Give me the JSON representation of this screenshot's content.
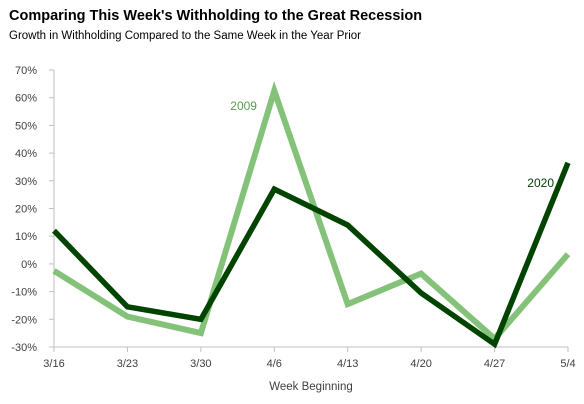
{
  "chart_data": {
    "type": "line",
    "title": "Comparing This Week's Withholding to the Great Recession",
    "subtitle": "Growth in Withholding Compared to the Same Week in the Year Prior",
    "xlabel": "Week Beginning",
    "ylabel": "",
    "categories": [
      "3/16",
      "3/23",
      "3/30",
      "4/6",
      "4/13",
      "4/20",
      "4/27",
      "5/4"
    ],
    "ylim": [
      -30,
      70
    ],
    "yticks": [
      -30,
      -20,
      -10,
      0,
      10,
      20,
      30,
      40,
      50,
      60,
      70
    ],
    "ytick_format": "%",
    "grid": false,
    "legend": "none",
    "series": [
      {
        "name": "2009",
        "color": "#84c27a",
        "values": [
          -2.5,
          -19,
          -25,
          62.5,
          -14.5,
          -3.5,
          -27,
          3.5
        ],
        "label_at": 3
      },
      {
        "name": "2020",
        "color": "#004400",
        "values": [
          12,
          -15.5,
          -20,
          27,
          14,
          -10.5,
          -29,
          36.5
        ],
        "label_at": 7
      }
    ]
  }
}
